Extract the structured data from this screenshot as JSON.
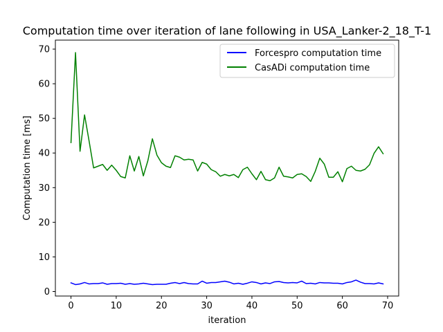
{
  "chart_data": {
    "type": "line",
    "title": "Computation time over iteration of lane following in USA_Lanker-2_18_T-1",
    "xlabel": "iteration",
    "ylabel": "Computation time [ms]",
    "xlim": [
      -3.45,
      72.45
    ],
    "ylim": [
      -1.3,
      72.6
    ],
    "xticks": [
      "0",
      "10",
      "20",
      "30",
      "40",
      "50",
      "60",
      "70"
    ],
    "xtick_values": [
      0,
      10,
      20,
      30,
      40,
      50,
      60,
      70
    ],
    "yticks": [
      "0",
      "10",
      "20",
      "30",
      "40",
      "50",
      "60",
      "70"
    ],
    "ytick_values": [
      0,
      10,
      20,
      30,
      40,
      50,
      60,
      70
    ],
    "grid": false,
    "legend_position": "upper right",
    "x": [
      0,
      1,
      2,
      3,
      4,
      5,
      6,
      7,
      8,
      9,
      10,
      11,
      12,
      13,
      14,
      15,
      16,
      17,
      18,
      19,
      20,
      21,
      22,
      23,
      24,
      25,
      26,
      27,
      28,
      29,
      30,
      31,
      32,
      33,
      34,
      35,
      36,
      37,
      38,
      39,
      40,
      41,
      42,
      43,
      44,
      45,
      46,
      47,
      48,
      49,
      50,
      51,
      52,
      53,
      54,
      55,
      56,
      57,
      58,
      59,
      60,
      61,
      62,
      63,
      64,
      65,
      66,
      67,
      68,
      69
    ],
    "series": [
      {
        "name": "Forcespro computation time",
        "color": "#0000ff",
        "values": [
          2.5,
          2.0,
          2.2,
          2.6,
          2.2,
          2.3,
          2.3,
          2.5,
          2.1,
          2.3,
          2.3,
          2.4,
          2.1,
          2.3,
          2.1,
          2.2,
          2.4,
          2.2,
          2.0,
          2.1,
          2.1,
          2.1,
          2.4,
          2.6,
          2.3,
          2.6,
          2.3,
          2.2,
          2.2,
          3.0,
          2.4,
          2.6,
          2.6,
          2.8,
          3.0,
          2.7,
          2.2,
          2.4,
          2.1,
          2.4,
          2.8,
          2.6,
          2.2,
          2.5,
          2.3,
          2.8,
          2.9,
          2.6,
          2.5,
          2.6,
          2.5,
          3.0,
          2.3,
          2.4,
          2.2,
          2.6,
          2.5,
          2.5,
          2.4,
          2.4,
          2.2,
          2.6,
          2.8,
          3.3,
          2.7,
          2.3,
          2.3,
          2.2,
          2.5,
          2.2
        ]
      },
      {
        "name": "CasADi computation time",
        "color": "#008000",
        "values": [
          43,
          69,
          40.5,
          51,
          43.5,
          35.7,
          36.2,
          36.7,
          35,
          36.5,
          35,
          33.2,
          32.8,
          39.2,
          34.8,
          39,
          33.4,
          37.8,
          44.1,
          39.4,
          37.2,
          36.2,
          35.8,
          39.2,
          38.8,
          38,
          38.2,
          38,
          34.8,
          37.3,
          36.8,
          35.2,
          34.6,
          33.3,
          33.8,
          33.4,
          33.8,
          32.9,
          35.2,
          35.9,
          34,
          32.3,
          34.7,
          32.3,
          32,
          32.8,
          35.9,
          33.3,
          33.1,
          32.8,
          33.8,
          34,
          33.2,
          31.8,
          34.7,
          38.5,
          36.8,
          33,
          33,
          34.6,
          31.7,
          35.5,
          36.2,
          35,
          34.8,
          35.3,
          36.6,
          39.9,
          41.8,
          39.8
        ]
      }
    ]
  }
}
